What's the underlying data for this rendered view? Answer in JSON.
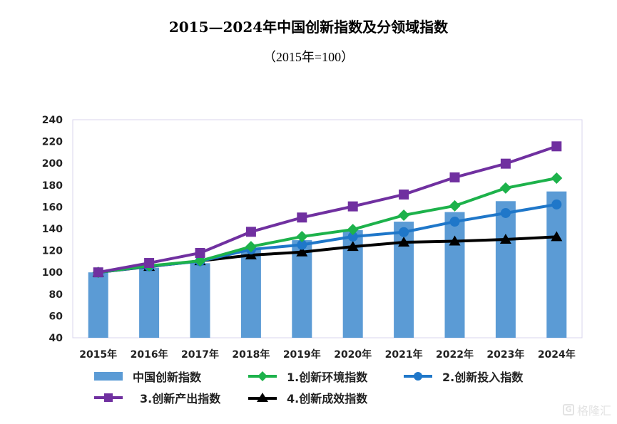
{
  "chart_data": {
    "type": "bar+line",
    "title": "2015—2024年中国创新指数及分领域指数",
    "subtitle": "（2015年=100）",
    "xlabel": "",
    "ylabel": "",
    "categories": [
      "2015年",
      "2016年",
      "2017年",
      "2018年",
      "2019年",
      "2020年",
      "2021年",
      "2022年",
      "2023年",
      "2024年"
    ],
    "ylim": [
      40,
      240
    ],
    "yticks": [
      40,
      60,
      80,
      100,
      120,
      140,
      160,
      180,
      200,
      220,
      240
    ],
    "grid": false,
    "legend_position": "bottom",
    "series": [
      {
        "name": "中国创新指数",
        "kind": "bar",
        "color": "#5B9BD5",
        "marker": "bar",
        "values": [
          100,
          104.3,
          108.4,
          121.2,
          129.5,
          138.7,
          146.5,
          155.3,
          165.3,
          174.2
        ]
      },
      {
        "name": "1.创新环境指数",
        "kind": "line",
        "color": "#1DB24B",
        "marker": "diamond",
        "values": [
          100,
          106.0,
          110.5,
          123.6,
          132.8,
          139.3,
          152.4,
          161.0,
          177.3,
          186.4
        ]
      },
      {
        "name": "2.创新投入指数",
        "kind": "line",
        "color": "#1F77C9",
        "marker": "circle",
        "values": [
          100,
          105.5,
          110.2,
          121.0,
          125.3,
          132.8,
          136.9,
          146.5,
          154.4,
          162.3
        ]
      },
      {
        "name": "3.创新产出指数",
        "kind": "line",
        "color": "#7030A0",
        "marker": "square",
        "values": [
          100,
          108.6,
          117.8,
          137.2,
          150.3,
          160.5,
          171.4,
          187.1,
          199.7,
          215.6
        ]
      },
      {
        "name": "4.创新成效指数",
        "kind": "line",
        "color": "#000000",
        "marker": "triangle",
        "values": [
          100,
          105.3,
          110.5,
          115.8,
          118.6,
          123.6,
          127.6,
          128.6,
          130.2,
          132.6
        ]
      }
    ]
  },
  "watermark": {
    "icon": "G",
    "text": "格隆汇"
  }
}
